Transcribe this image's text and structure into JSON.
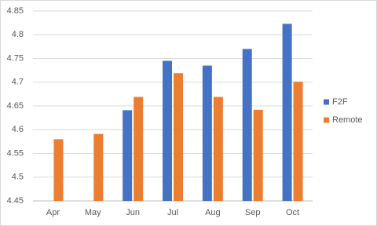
{
  "chart_data": {
    "type": "bar",
    "categories": [
      "Apr",
      "May",
      "Jun",
      "Jul",
      "Aug",
      "Sep",
      "Oct"
    ],
    "series": [
      {
        "name": "F2F",
        "color": "#4472c4",
        "values": [
          null,
          null,
          4.641,
          4.745,
          4.735,
          4.77,
          4.823
        ]
      },
      {
        "name": "Remote",
        "color": "#ed7d31",
        "values": [
          4.58,
          4.591,
          4.669,
          4.719,
          4.669,
          4.642,
          4.701
        ]
      }
    ],
    "ylim": [
      4.45,
      4.85
    ],
    "yticks": [
      4.45,
      4.5,
      4.55,
      4.6,
      4.65,
      4.7,
      4.75,
      4.8,
      4.85
    ],
    "grid": true,
    "legend": "right"
  }
}
